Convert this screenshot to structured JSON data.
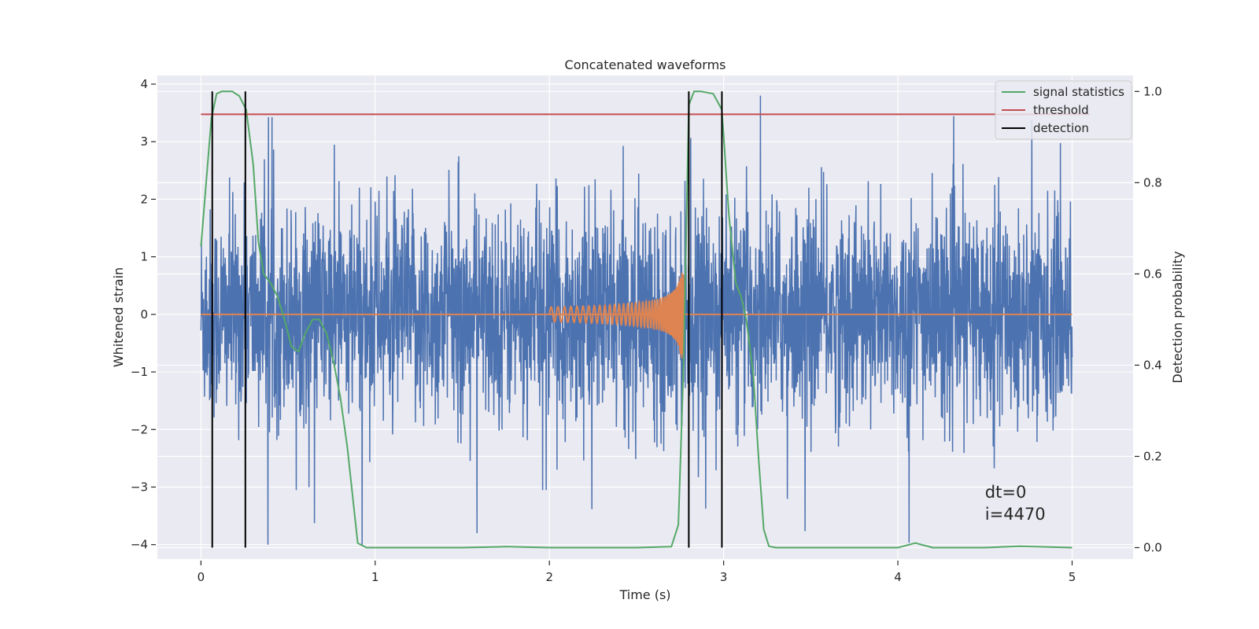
{
  "chart_data": {
    "type": "line",
    "title": "Concatenated waveforms",
    "xlabel": "Time (s)",
    "ylabel": "Whitened strain",
    "y2label": "Detection probability",
    "xlim": [
      -0.25,
      5.35
    ],
    "ylim": [
      -4.25,
      4.15
    ],
    "y2lim": [
      -0.025,
      1.035
    ],
    "xticks": [
      0,
      1,
      2,
      3,
      4,
      5
    ],
    "yticks": [
      -4,
      -3,
      -2,
      -1,
      0,
      1,
      2,
      3,
      4
    ],
    "y2ticks": [
      0.0,
      0.2,
      0.4,
      0.6,
      0.8,
      1.0
    ],
    "xtick_labels": [
      "0",
      "1",
      "2",
      "3",
      "4",
      "5"
    ],
    "ytick_labels": [
      "−4",
      "−3",
      "−2",
      "−1",
      "0",
      "1",
      "2",
      "3",
      "4"
    ],
    "y2tick_labels": [
      "0.0",
      "0.2",
      "0.4",
      "0.6",
      "0.8",
      "1.0"
    ],
    "grid": true,
    "legend_position": "top-right",
    "series": [
      {
        "name": "",
        "axis": "left",
        "color": "#4c72b0",
        "kind": "noise",
        "x_range": [
          0,
          5
        ],
        "typical_amplitude": 0.9,
        "peak_range": [
          -4,
          3.8
        ]
      },
      {
        "name": "",
        "axis": "left",
        "color": "#dd8452",
        "kind": "chirp",
        "x_range": [
          0,
          5
        ],
        "chirp_start": 2.0,
        "chirp_end": 2.77,
        "peak_amplitude": 0.8
      },
      {
        "name": "signal statistics",
        "axis": "right",
        "color": "#55a868",
        "x": [
          0,
          0.03,
          0.06,
          0.09,
          0.12,
          0.18,
          0.22,
          0.26,
          0.3,
          0.33,
          0.36,
          0.4,
          0.44,
          0.48,
          0.52,
          0.56,
          0.6,
          0.64,
          0.68,
          0.72,
          0.76,
          0.8,
          0.84,
          0.88,
          0.9,
          0.95,
          1.0,
          1.5,
          1.75,
          2.0,
          2.5,
          2.7,
          2.74,
          2.77,
          2.8,
          2.83,
          2.87,
          2.94,
          2.99,
          3.03,
          3.07,
          3.1,
          3.13,
          3.17,
          3.2,
          3.23,
          3.26,
          3.3,
          4.0,
          4.1,
          4.2,
          4.5,
          4.7,
          5.0
        ],
        "y": [
          0.66,
          0.8,
          0.94,
          0.995,
          1.0,
          1.0,
          0.99,
          0.96,
          0.84,
          0.67,
          0.6,
          0.58,
          0.55,
          0.5,
          0.44,
          0.43,
          0.47,
          0.5,
          0.5,
          0.47,
          0.41,
          0.33,
          0.22,
          0.08,
          0.01,
          0.0,
          0.0,
          0.0,
          0.002,
          0.0,
          0.0,
          0.002,
          0.05,
          0.4,
          0.97,
          1.0,
          1.0,
          0.995,
          0.96,
          0.73,
          0.58,
          0.55,
          0.5,
          0.38,
          0.2,
          0.04,
          0.003,
          0.0,
          0.0,
          0.01,
          0.0,
          0.0,
          0.003,
          0.0
        ]
      },
      {
        "name": "threshold",
        "axis": "right",
        "color": "#c44e52",
        "x": [
          0,
          5.1
        ],
        "y": [
          0.95,
          0.95
        ]
      },
      {
        "name": "detection",
        "axis": "right",
        "color": "#000000",
        "x_positions": [
          0.065,
          0.255,
          2.8,
          2.99
        ],
        "y_range": [
          0.0,
          1.0
        ]
      }
    ],
    "annotations": {
      "dt": "dt=0",
      "i": "i=4470"
    }
  }
}
